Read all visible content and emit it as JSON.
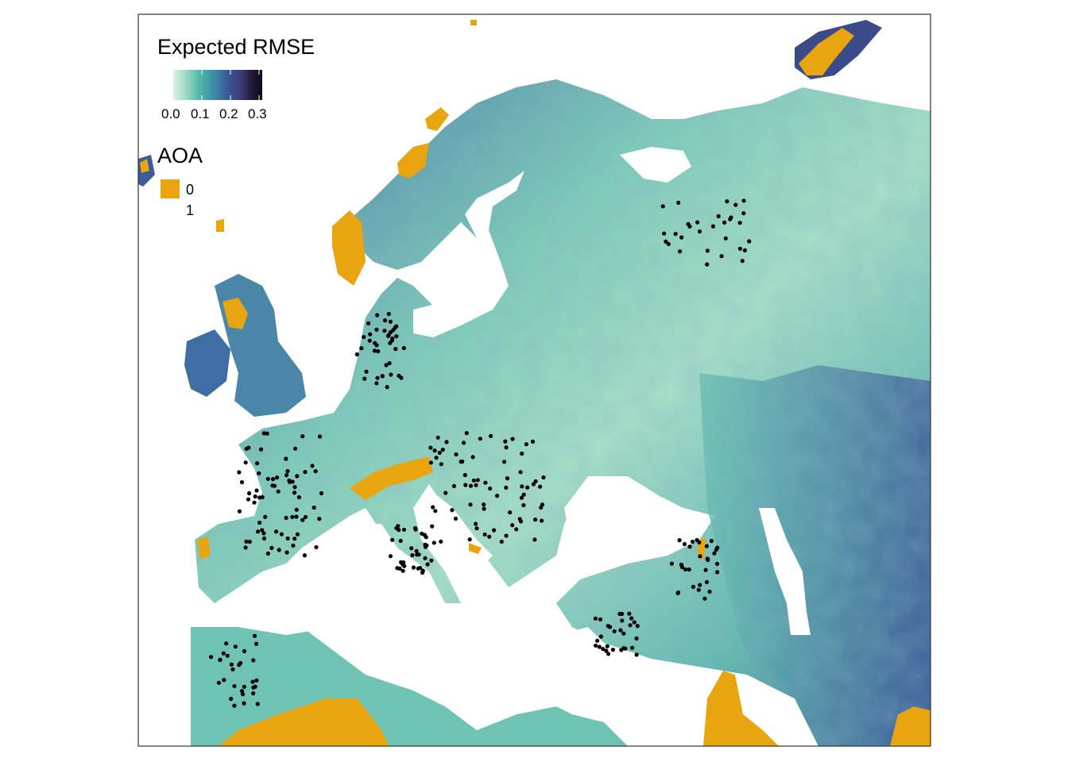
{
  "legend": {
    "rmse_title": "Expected RMSE",
    "rmse_ticks": [
      "0.0",
      "0.1",
      "0.2",
      "0.3"
    ],
    "gradient_colors": [
      "#d8f2e2",
      "#9bd9c3",
      "#4fb6a8",
      "#3c8fa6",
      "#3a5d9a",
      "#3b3f7a",
      "#241b3a",
      "#0f0818"
    ],
    "aoa_title": "AOA",
    "aoa_items": [
      {
        "label": "0",
        "color": "#e8a50f"
      },
      {
        "label": "1",
        "color": "#ffffff"
      }
    ]
  },
  "map": {
    "colors": {
      "sea": "#ffffff",
      "low_error": "#bfe8d3",
      "mid_error": "#63bfb0",
      "high_error": "#3c67a0",
      "very_high_error": "#36406f",
      "outside_aoa": "#e8a50f",
      "sample_points": "#000000",
      "frame": "#333333"
    },
    "sample_clusters": [
      {
        "region": "Northern Germany / Denmark",
        "count": 40
      },
      {
        "region": "France",
        "count": 70
      },
      {
        "region": "Central Italy",
        "count": 35
      },
      {
        "region": "Pannonian Basin",
        "count": 75
      },
      {
        "region": "Caucasus",
        "count": 30
      },
      {
        "region": "Southern Turkey",
        "count": 30
      },
      {
        "region": "Morocco",
        "count": 30
      },
      {
        "region": "Central Russia",
        "count": 30
      }
    ]
  }
}
